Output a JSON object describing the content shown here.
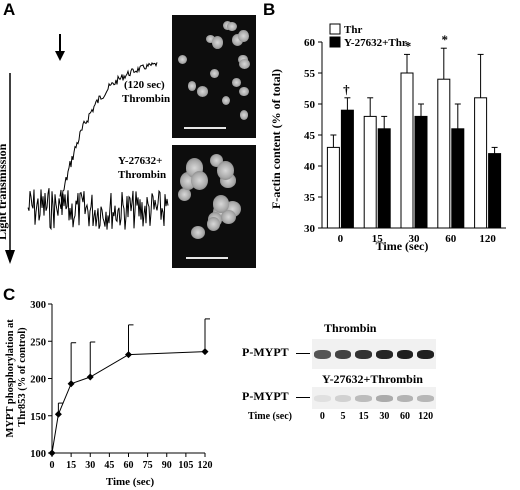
{
  "panels": {
    "a": "A",
    "b": "B",
    "c": "C"
  },
  "panel_a": {
    "light_transmission_label": "Light transmission",
    "trace_thrombin_label_line1": "(120 sec)",
    "trace_thrombin_label_line2": "Thrombin",
    "trace_y_label_line1": "Y-27632+",
    "trace_y_label_line2": "Thrombin"
  },
  "panel_c_blot": {
    "top_title": "Thrombin",
    "bottom_title": "Y-27632+Thrombin",
    "row_label": "P-MYPT",
    "time_label": "Time (sec)",
    "time_values": [
      "0",
      "5",
      "15",
      "30",
      "60",
      "120"
    ],
    "top_band_intensity": [
      0.7,
      0.78,
      0.86,
      0.92,
      0.95,
      0.95
    ],
    "bottom_band_intensity": [
      0.05,
      0.12,
      0.22,
      0.3,
      0.26,
      0.24
    ]
  },
  "chart_data": [
    {
      "id": "B",
      "type": "bar",
      "ylabel": "F-actin content (% of total)",
      "xlabel": "Time (sec)",
      "categories": [
        "0",
        "15",
        "30",
        "60",
        "120"
      ],
      "ylim": [
        30,
        60
      ],
      "yticks": [
        "30",
        "35",
        "40",
        "45",
        "50",
        "55",
        "60"
      ],
      "grid": false,
      "legend_position": "top-left",
      "series": [
        {
          "name": "Thr",
          "color": "#ffffff",
          "values": [
            43,
            48,
            55,
            54,
            51
          ],
          "errors": [
            2,
            3,
            3,
            5,
            7
          ]
        },
        {
          "name": "Y-27632+Thr",
          "color": "#000000",
          "values": [
            49,
            46,
            48,
            46,
            42
          ],
          "errors": [
            2,
            2,
            2,
            4,
            1
          ]
        }
      ],
      "annotations": [
        {
          "text": "†",
          "category": "0"
        },
        {
          "text": "*",
          "category": "30"
        },
        {
          "text": "*",
          "category": "60"
        }
      ]
    },
    {
      "id": "C",
      "type": "line",
      "ylabel": "MYPT phosphorylation at Thr853 (% of control)",
      "xlabel": "Time (sec)",
      "x": [
        0,
        5,
        15,
        30,
        60,
        120
      ],
      "values": [
        100,
        152,
        193,
        202,
        232,
        236
      ],
      "errors": [
        0,
        15,
        55,
        47,
        40,
        44
      ],
      "xlim": [
        0,
        120
      ],
      "ylim": [
        100,
        300
      ],
      "xticks": [
        "0",
        "15",
        "30",
        "45",
        "60",
        "75",
        "90",
        "105",
        "120"
      ],
      "yticks": [
        "100",
        "150",
        "200",
        "250",
        "300"
      ],
      "grid": false
    }
  ]
}
